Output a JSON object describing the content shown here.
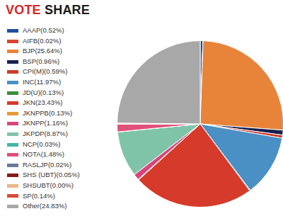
{
  "chart_data": {
    "type": "pie",
    "title": "VOTE SHARE",
    "categories": [
      "AAAP(0.52%)",
      "AIFB(0.02%)",
      "BJP(25.64%)",
      "BSP(0.96%)",
      "CPI(M)(0.59%)",
      "INC(11.97%)",
      "JD(U)(0.13%)",
      "JKN(23.43%)",
      "JKNPPB(0.13%)",
      "JKNPP(1.16%)",
      "JKPDP(8.87%)",
      "NCP(0.03%)",
      "NOTA(1.48%)",
      "RASLJP(0.02%)",
      "SHS (UBT)(0.05%)",
      "SHSUBT(0.00%)",
      "SP(0.14%)",
      "Other(24.83%)"
    ],
    "values": [
      0.52,
      0.02,
      25.64,
      0.96,
      0.59,
      11.97,
      0.13,
      23.43,
      0.13,
      1.16,
      8.87,
      0.03,
      1.48,
      0.02,
      0.05,
      0.0,
      0.14,
      24.83
    ],
    "colors": [
      "#1f4e9c",
      "#d9432f",
      "#e8843a",
      "#1a1f4e",
      "#cc3b2b",
      "#4a90c4",
      "#3a8f3a",
      "#d63a2a",
      "#e89a3a",
      "#d9457a",
      "#7fc4a8",
      "#3fb8a8",
      "#e0507a",
      "#6a7a9a",
      "#8a1a1a",
      "#e8b88a",
      "#d94a3a",
      "#a8a8a8"
    ],
    "legend": "left"
  }
}
